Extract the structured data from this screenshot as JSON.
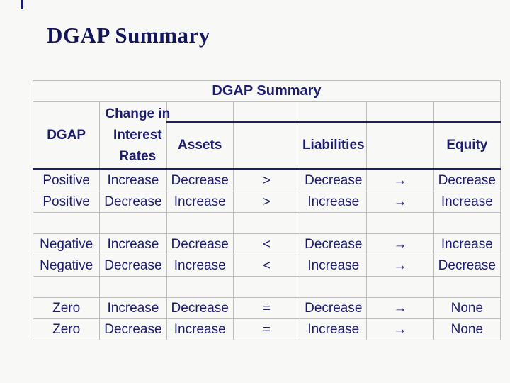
{
  "slide": {
    "title": "DGAP Summary"
  },
  "table": {
    "title": "DGAP Summary",
    "headers": {
      "dgap": "DGAP",
      "change": "Change in Interest Rates",
      "assets": "Assets",
      "liabilities": "Liabilities",
      "equity": "Equity"
    },
    "rows": [
      {
        "dgap": "Positive",
        "change": "Increase",
        "assets": "Decrease",
        "sym": ">",
        "liabilities": "Decrease",
        "arrow": "→",
        "equity": "Decrease"
      },
      {
        "dgap": "Positive",
        "change": "Decrease",
        "assets": "Increase",
        "sym": ">",
        "liabilities": "Increase",
        "arrow": "→",
        "equity": "Increase"
      },
      {
        "dgap": "",
        "change": "",
        "assets": "",
        "sym": "",
        "liabilities": "",
        "arrow": "",
        "equity": ""
      },
      {
        "dgap": "Negative",
        "change": "Increase",
        "assets": "Decrease",
        "sym": "<",
        "liabilities": "Decrease",
        "arrow": "→",
        "equity": "Increase"
      },
      {
        "dgap": "Negative",
        "change": "Decrease",
        "assets": "Increase",
        "sym": "<",
        "liabilities": "Increase",
        "arrow": "→",
        "equity": "Decrease"
      },
      {
        "dgap": "",
        "change": "",
        "assets": "",
        "sym": "",
        "liabilities": "",
        "arrow": "",
        "equity": ""
      },
      {
        "dgap": "Zero",
        "change": "Increase",
        "assets": "Decrease",
        "sym": "=",
        "liabilities": "Decrease",
        "arrow": "→",
        "equity": "None"
      },
      {
        "dgap": "Zero",
        "change": "Decrease",
        "assets": "Increase",
        "sym": "=",
        "liabilities": "Increase",
        "arrow": "→",
        "equity": "None"
      }
    ]
  },
  "colors": {
    "text_navy": "#1d1d70",
    "title_navy": "#15155e",
    "grid_gray": "#bcbcbc",
    "background": "#f8f8f6"
  }
}
